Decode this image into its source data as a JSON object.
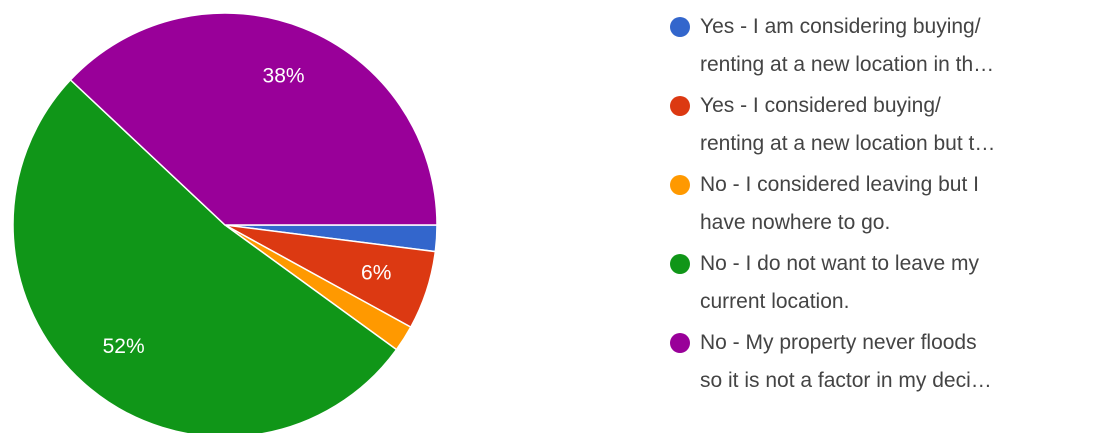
{
  "chart_data": {
    "type": "pie",
    "categories": [
      "Yes - I am considering buying/\nrenting at a new location in th…",
      "Yes - I considered buying/\nrenting at a new location but t…",
      "No - I considered leaving but I\nhave nowhere to go.",
      "No - I do not want to leave my\ncurrent location.",
      "No - My property never floods\nso it is not a factor in my deci…"
    ],
    "values": [
      2,
      6,
      2,
      52,
      38
    ],
    "value_labels": [
      null,
      "6%",
      null,
      "52%",
      "38%"
    ],
    "colors": [
      "#3366cc",
      "#dc3912",
      "#ff9900",
      "#109618",
      "#990099"
    ],
    "legend": "right"
  }
}
